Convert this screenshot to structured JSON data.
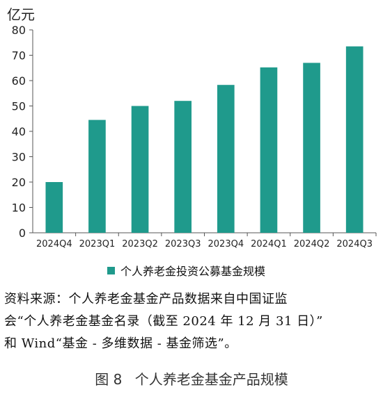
{
  "chart_data": {
    "type": "bar",
    "unit_label": "亿元",
    "categories": [
      "2024Q4",
      "2023Q1",
      "2023Q2",
      "2023Q3",
      "2023Q4",
      "2024Q1",
      "2024Q2",
      "2024Q3"
    ],
    "series": [
      {
        "name": "个人养老金投资公募基金规模",
        "values": [
          20,
          44.5,
          50,
          52,
          58.3,
          65.2,
          67,
          73.5
        ]
      }
    ],
    "ylim": [
      0,
      80
    ],
    "yticks": [
      0,
      10,
      20,
      30,
      40,
      50,
      60,
      70,
      80
    ],
    "grid": false,
    "legend_position": "bottom",
    "bar_color": "#1f9a8c"
  },
  "source_note": {
    "line1": "资料来源：个人养老金基金产品数据来自中国证监",
    "line2": "会“个人养老金基金名录（截至 2024 年 12 月 31 日）”",
    "line3": "和 Wind“基金 - 多维数据 - 基金筛选”。"
  },
  "caption": {
    "number": "图 8",
    "title": "个人养老金基金产品规模"
  }
}
